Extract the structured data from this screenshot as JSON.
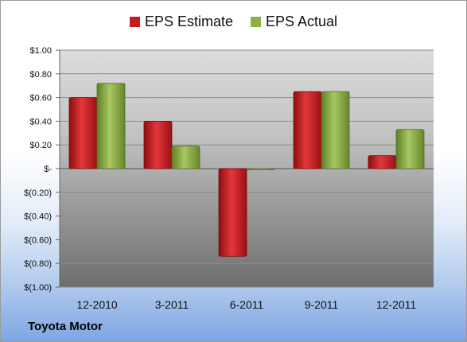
{
  "chart_data": {
    "type": "bar",
    "categories": [
      "12-2010",
      "3-2011",
      "6-2011",
      "9-2011",
      "12-2011"
    ],
    "series": [
      {
        "name": "EPS Estimate",
        "color": "#c8191c",
        "values": [
          0.6,
          0.4,
          -0.74,
          0.65,
          0.11
        ]
      },
      {
        "name": "EPS Actual",
        "color": "#8cb043",
        "values": [
          0.72,
          0.19,
          -0.01,
          0.65,
          0.33
        ]
      }
    ],
    "ylim": [
      -1.0,
      1.0
    ],
    "yticks": [
      1.0,
      0.8,
      0.6,
      0.4,
      0.2,
      0,
      -0.2,
      -0.4,
      -0.6,
      -0.8,
      -1.0
    ],
    "ytick_labels": [
      "$1.00",
      "$0.80",
      "$0.60",
      "$0.40",
      "$0.20",
      "$-",
      "$(0.20)",
      "$(0.40)",
      "$(0.60)",
      "$(0.80)",
      "$(1.00)"
    ],
    "legend_position": "top-center",
    "grid": true
  },
  "footer": {
    "company": "Toyota Motor"
  }
}
